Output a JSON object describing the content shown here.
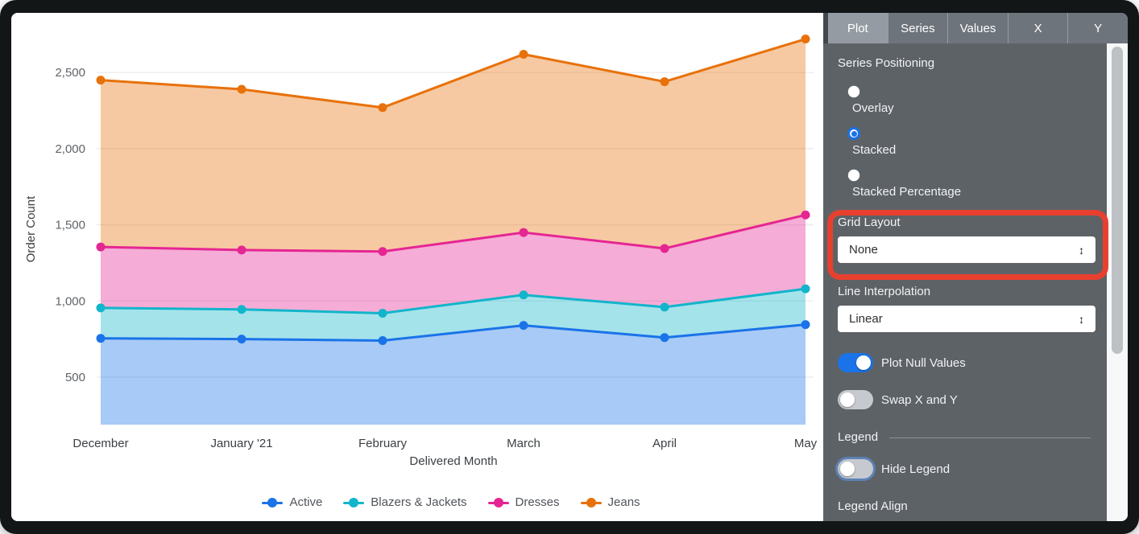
{
  "chart_data": {
    "type": "area",
    "stacked": true,
    "note": "Stacked area chart; per-series values below are the cumulative stacked y-positions as plotted on screen.",
    "title": "",
    "xlabel": "Delivered Month",
    "ylabel": "Order Count",
    "categories": [
      "December",
      "January '21",
      "February",
      "March",
      "April",
      "May"
    ],
    "series": [
      {
        "name": "Active",
        "color": "#1A73E8",
        "cumulative_values": [
          755,
          750,
          740,
          840,
          760,
          845
        ]
      },
      {
        "name": "Blazers & Jackets",
        "color": "#12B5CB",
        "cumulative_values": [
          955,
          945,
          920,
          1040,
          960,
          1080
        ]
      },
      {
        "name": "Dresses",
        "color": "#E52592",
        "cumulative_values": [
          1355,
          1335,
          1325,
          1450,
          1345,
          1565
        ]
      },
      {
        "name": "Jeans",
        "color": "#E8710A",
        "cumulative_values": [
          2450,
          2390,
          2270,
          2620,
          2440,
          2720
        ]
      }
    ],
    "y_ticks": [
      500,
      1000,
      1500,
      2000,
      2500
    ],
    "y_tick_labels": [
      "500",
      "1,000",
      "1,500",
      "2,000",
      "2,500"
    ],
    "ylim_approx": [
      200,
      2870
    ],
    "grid": true,
    "legend_position": "bottom"
  },
  "panel": {
    "tabs": [
      {
        "label": "Plot",
        "selected": true
      },
      {
        "label": "Series",
        "selected": false
      },
      {
        "label": "Values",
        "selected": false
      },
      {
        "label": "X",
        "selected": false
      },
      {
        "label": "Y",
        "selected": false
      }
    ],
    "series_positioning": {
      "label": "Series Positioning",
      "options": [
        {
          "label": "Overlay",
          "selected": false
        },
        {
          "label": "Stacked",
          "selected": true
        },
        {
          "label": "Stacked Percentage",
          "selected": false
        }
      ]
    },
    "grid_layout": {
      "label": "Grid Layout",
      "value": "None",
      "highlighted": true
    },
    "line_interpolation": {
      "label": "Line Interpolation",
      "value": "Linear"
    },
    "toggles": [
      {
        "label": "Plot Null Values",
        "on": true
      },
      {
        "label": "Swap X and Y",
        "on": false
      }
    ],
    "legend_section": {
      "header": "Legend",
      "hide_legend": {
        "label": "Hide Legend",
        "on": false,
        "focused": true
      },
      "legend_align_label": "Legend Align"
    }
  },
  "icons": {
    "select_arrows": "↕"
  },
  "colors": {
    "series_blue": "#1A73E8",
    "series_teal": "#12B5CB",
    "series_pink": "#E52592",
    "series_orange": "#E8710A",
    "highlight_red": "#E8402F",
    "toggle_on_blue": "#1A73E8",
    "panel_bg": "#5D6267",
    "tabbar_bg": "#43474C",
    "tab_selected_bg": "#959BA3",
    "tab_bg": "#6E747C"
  }
}
